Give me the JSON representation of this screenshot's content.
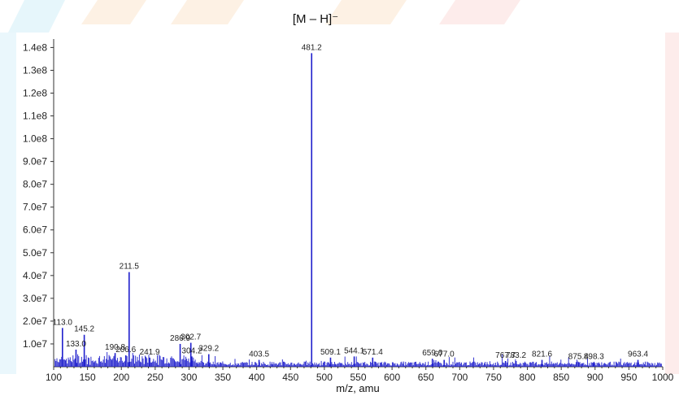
{
  "chart_data": {
    "type": "line",
    "title": "[M – H]⁻",
    "xlabel": "m/z, amu",
    "ylabel": "",
    "xlim": [
      100,
      1000
    ],
    "ylim": [
      0,
      143000000.0
    ],
    "x_ticks": [
      100,
      150,
      200,
      250,
      300,
      350,
      400,
      450,
      500,
      550,
      600,
      650,
      700,
      750,
      800,
      850,
      900,
      950,
      1000
    ],
    "y_ticks": [
      {
        "value": 10000000.0,
        "label": "1.0e7"
      },
      {
        "value": 20000000.0,
        "label": "2.0e7"
      },
      {
        "value": 30000000.0,
        "label": "3.0e7"
      },
      {
        "value": 40000000.0,
        "label": "4.0e7"
      },
      {
        "value": 50000000.0,
        "label": "5.0e7"
      },
      {
        "value": 60000000.0,
        "label": "6.0e7"
      },
      {
        "value": 70000000.0,
        "label": "7.0e7"
      },
      {
        "value": 80000000.0,
        "label": "8.0e7"
      },
      {
        "value": 90000000.0,
        "label": "9.0e7"
      },
      {
        "value": 100000000.0,
        "label": "1.0e8"
      },
      {
        "value": 110000000.0,
        "label": "1.1e8"
      },
      {
        "value": 120000000.0,
        "label": "1.2e8"
      },
      {
        "value": 130000000.0,
        "label": "1.3e8"
      },
      {
        "value": 140000000.0,
        "label": "1.4e8"
      }
    ],
    "line_color": "#1f1fcc",
    "grid": false,
    "series": [
      {
        "peaks": [
          {
            "mz": 113.0,
            "intensity": 17000000.0,
            "label": "113.0"
          },
          {
            "mz": 133.0,
            "intensity": 7500000.0,
            "label": "133.0"
          },
          {
            "mz": 145.2,
            "intensity": 14000000.0,
            "label": "145.2"
          },
          {
            "mz": 206.6,
            "intensity": 5000000.0,
            "label": "206.6"
          },
          {
            "mz": 190.8,
            "intensity": 6000000.0,
            "label": "190.8"
          },
          {
            "mz": 211.5,
            "intensity": 41500000.0,
            "label": "211.5"
          },
          {
            "mz": 241.9,
            "intensity": 4000000.0,
            "label": "241.9"
          },
          {
            "mz": 286.9,
            "intensity": 10000000.0,
            "label": "286.9"
          },
          {
            "mz": 302.7,
            "intensity": 10500000.0,
            "label": "302.7"
          },
          {
            "mz": 304.2,
            "intensity": 4500000.0,
            "label": "304.2"
          },
          {
            "mz": 329.2,
            "intensity": 5500000.0,
            "label": "329.2"
          },
          {
            "mz": 403.5,
            "intensity": 3000000.0,
            "label": "403.5"
          },
          {
            "mz": 481.2,
            "intensity": 137500000.0,
            "label": "481.2"
          },
          {
            "mz": 509.1,
            "intensity": 4000000.0,
            "label": "509.1"
          },
          {
            "mz": 544.1,
            "intensity": 4500000.0,
            "label": "544.1"
          },
          {
            "mz": 571.4,
            "intensity": 4000000.0,
            "label": "571.4"
          },
          {
            "mz": 659.6,
            "intensity": 3500000.0,
            "label": "659.6"
          },
          {
            "mz": 677.0,
            "intensity": 3000000.0,
            "label": "677.0"
          },
          {
            "mz": 767.7,
            "intensity": 2500000.0,
            "label": "767.7"
          },
          {
            "mz": 783.2,
            "intensity": 2500000.0,
            "label": "783.2"
          },
          {
            "mz": 821.6,
            "intensity": 3000000.0,
            "label": "821.6"
          },
          {
            "mz": 875.4,
            "intensity": 2000000.0,
            "label": "875.4"
          },
          {
            "mz": 898.3,
            "intensity": 2000000.0,
            "label": "898.3"
          },
          {
            "mz": 963.4,
            "intensity": 3000000.0,
            "label": "963.4"
          }
        ]
      }
    ]
  }
}
